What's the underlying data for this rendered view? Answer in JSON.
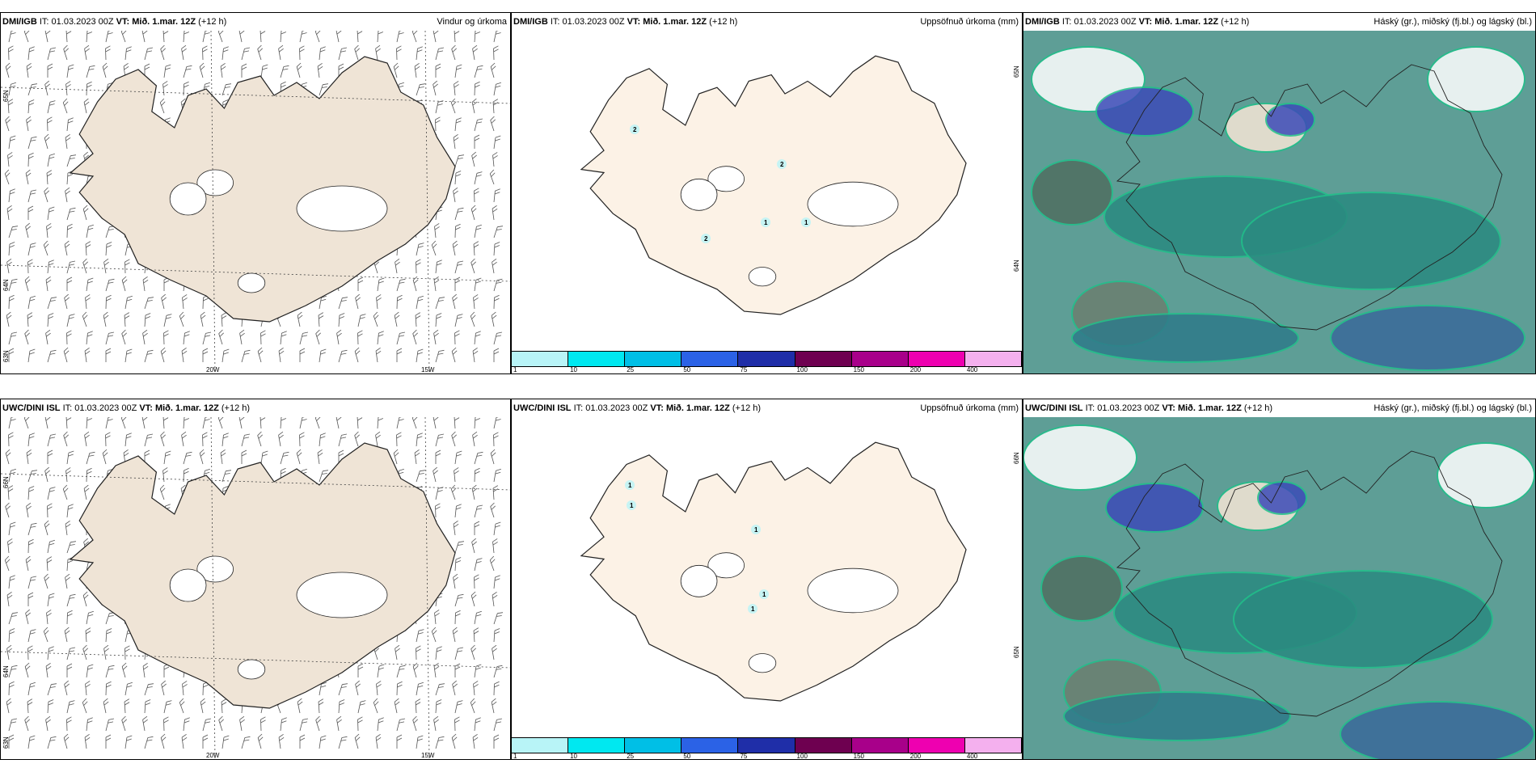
{
  "rows": [
    {
      "wind": {
        "model": "DMI/IGB",
        "it_label": "IT:",
        "it_value": "01.03.2023 00Z",
        "vt_label": "VT:",
        "vt_value": "Mið. 1.mar. 12Z",
        "lead": "(+12 h)",
        "title": "Vindur og úrkoma",
        "lat_labels": [
          "65N",
          "64N",
          "63N"
        ],
        "lon_labels": [
          "20W",
          "15W"
        ]
      },
      "precip": {
        "model": "DMI/IGB",
        "it_label": "IT:",
        "it_value": "01.03.2023 00Z",
        "vt_label": "VT:",
        "vt_value": "Mið. 1.mar. 12Z",
        "lead": "(+12 h)",
        "title": "Uppsöfnuð úrkoma (mm)",
        "lat_labels": [
          "65N",
          "64N"
        ],
        "point_values": [
          "2",
          "2",
          "1",
          "2",
          "1"
        ]
      },
      "clouds": {
        "model": "DMI/IGB",
        "it_label": "IT:",
        "it_value": "01.03.2023 00Z",
        "vt_label": "VT:",
        "vt_value": "Mið. 1.mar. 12Z",
        "lead": "(+12 h)",
        "title": "Háský (gr.), miðský (fj.bl.) og lágský (bl.)"
      }
    },
    {
      "wind": {
        "model": "UWC/DINI ISL",
        "it_label": "IT:",
        "it_value": "01.03.2023 00Z",
        "vt_label": "VT:",
        "vt_value": "Mið. 1.mar. 12Z",
        "lead": "(+12 h)",
        "title": "",
        "lat_labels": [
          "66N",
          "64N",
          "63N"
        ],
        "lon_labels": [
          "20W",
          "15W"
        ]
      },
      "precip": {
        "model": "UWC/DINI ISL",
        "it_label": "IT:",
        "it_value": "01.03.2023 00Z",
        "vt_label": "VT:",
        "vt_value": "Mið. 1.mar. 12Z",
        "lead": "(+12 h)",
        "title": "Uppsöfnuð úrkoma (mm)",
        "lat_labels": [
          "66N",
          "65N"
        ],
        "point_values": [
          "1",
          "1",
          "1",
          "1",
          "1"
        ]
      },
      "clouds": {
        "model": "UWC/DINI ISL",
        "it_label": "IT:",
        "it_value": "01.03.2023 00Z",
        "vt_label": "VT:",
        "vt_value": "Mið. 1.mar. 12Z",
        "lead": "(+12 h)",
        "title": "Háský (gr.), miðský (fj.bl.) og lágský (bl.)"
      }
    }
  ],
  "precip_legend": {
    "ticks": [
      "1",
      "10",
      "25",
      "50",
      "75",
      "100",
      "150",
      "200",
      "400"
    ],
    "colors": [
      "#b8f4f7",
      "#00e8f0",
      "#00bfe6",
      "#2b62e6",
      "#1f2ea8",
      "#6e0050",
      "#a8008a",
      "#ee00b0",
      "#f4b0ee"
    ]
  },
  "colors": {
    "land": "#efe4d6",
    "land_precip": "#fcf2e6",
    "cloud_high": "#5e9e96",
    "cloud_mid": "#2a8a80",
    "cloud_low": "#3c4bb8",
    "cloud_edge": "#20c08a"
  }
}
